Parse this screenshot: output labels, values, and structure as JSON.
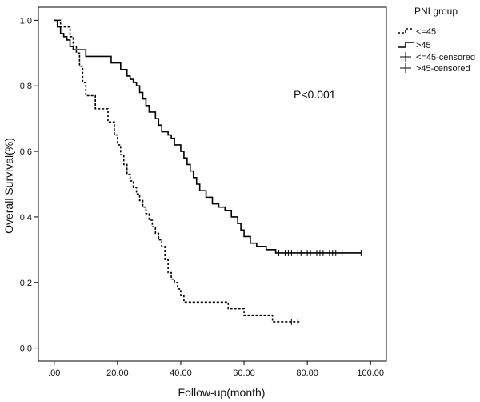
{
  "chart_data": {
    "type": "line",
    "title": "",
    "xlabel": "Follow-up(month)",
    "ylabel": "Overall Survival(%)",
    "xlim": [
      -5,
      105
    ],
    "ylim": [
      -0.04,
      1.04
    ],
    "x_ticks": [
      0,
      20,
      40,
      60,
      80,
      100
    ],
    "x_tick_labels": [
      ".00",
      "20.00",
      "40.00",
      "60.00",
      "80.00",
      "100.00"
    ],
    "y_ticks": [
      0,
      0.2,
      0.4,
      0.6,
      0.8,
      1.0
    ],
    "y_tick_labels": [
      "0.0",
      "0.2",
      "0.4",
      "0.6",
      "0.8",
      "1.0"
    ],
    "grid": false,
    "annotation": "P<0.001",
    "legend": {
      "title": "PNI group",
      "placement": "outside-right",
      "entries": [
        {
          "label": "<=45",
          "symbol": "dashed-step"
        },
        {
          "label": ">45",
          "symbol": "solid-step"
        },
        {
          "label": "<=45-censored",
          "symbol": "censor-mark"
        },
        {
          "label": ">45-censored",
          "symbol": "censor-mark"
        }
      ]
    },
    "series": [
      {
        "name": "<=45",
        "style": "dashed",
        "color": "#000000",
        "steps": [
          [
            0,
            1.0
          ],
          [
            2,
            0.98
          ],
          [
            5,
            0.95
          ],
          [
            6,
            0.92
          ],
          [
            7,
            0.9
          ],
          [
            8,
            0.86
          ],
          [
            9,
            0.81
          ],
          [
            10,
            0.77
          ],
          [
            13,
            0.73
          ],
          [
            17,
            0.69
          ],
          [
            19,
            0.65
          ],
          [
            20,
            0.62
          ],
          [
            21,
            0.59
          ],
          [
            22,
            0.56
          ],
          [
            23,
            0.53
          ],
          [
            24,
            0.51
          ],
          [
            25,
            0.49
          ],
          [
            26,
            0.47
          ],
          [
            27,
            0.45
          ],
          [
            28,
            0.43
          ],
          [
            29,
            0.41
          ],
          [
            30,
            0.39
          ],
          [
            31,
            0.37
          ],
          [
            32,
            0.35
          ],
          [
            33,
            0.33
          ],
          [
            34,
            0.31
          ],
          [
            35,
            0.27
          ],
          [
            36,
            0.23
          ],
          [
            37,
            0.21
          ],
          [
            38,
            0.2
          ],
          [
            39,
            0.18
          ],
          [
            40,
            0.16
          ],
          [
            41,
            0.14
          ],
          [
            55,
            0.12
          ],
          [
            60,
            0.1
          ],
          [
            69,
            0.08
          ]
        ],
        "end": 78,
        "censored": [
          [
            72,
            0.08
          ],
          [
            75,
            0.08
          ],
          [
            77,
            0.08
          ]
        ]
      },
      {
        "name": ">45",
        "style": "solid",
        "color": "#000000",
        "steps": [
          [
            0,
            1.0
          ],
          [
            1,
            0.98
          ],
          [
            2,
            0.96
          ],
          [
            3,
            0.95
          ],
          [
            4,
            0.94
          ],
          [
            5,
            0.92
          ],
          [
            6,
            0.91
          ],
          [
            10,
            0.89
          ],
          [
            18,
            0.87
          ],
          [
            21,
            0.85
          ],
          [
            23,
            0.83
          ],
          [
            24,
            0.82
          ],
          [
            25,
            0.81
          ],
          [
            26,
            0.8
          ],
          [
            27,
            0.78
          ],
          [
            28,
            0.76
          ],
          [
            29,
            0.74
          ],
          [
            30,
            0.72
          ],
          [
            32,
            0.7
          ],
          [
            33,
            0.68
          ],
          [
            34,
            0.66
          ],
          [
            36,
            0.65
          ],
          [
            37,
            0.64
          ],
          [
            38,
            0.62
          ],
          [
            40,
            0.6
          ],
          [
            41,
            0.58
          ],
          [
            42,
            0.56
          ],
          [
            43,
            0.54
          ],
          [
            44,
            0.52
          ],
          [
            45,
            0.5
          ],
          [
            46,
            0.48
          ],
          [
            48,
            0.46
          ],
          [
            50,
            0.44
          ],
          [
            52,
            0.43
          ],
          [
            54,
            0.42
          ],
          [
            56,
            0.4
          ],
          [
            58,
            0.38
          ],
          [
            59,
            0.36
          ],
          [
            60,
            0.34
          ],
          [
            62,
            0.32
          ],
          [
            64,
            0.31
          ],
          [
            67,
            0.3
          ],
          [
            70,
            0.29
          ]
        ],
        "end": 97,
        "censored": [
          [
            71,
            0.29
          ],
          [
            72,
            0.29
          ],
          [
            73,
            0.29
          ],
          [
            74,
            0.29
          ],
          [
            75,
            0.29
          ],
          [
            77,
            0.29
          ],
          [
            78,
            0.29
          ],
          [
            80,
            0.29
          ],
          [
            81,
            0.29
          ],
          [
            83,
            0.29
          ],
          [
            84,
            0.29
          ],
          [
            85,
            0.29
          ],
          [
            87,
            0.29
          ],
          [
            88,
            0.29
          ],
          [
            89,
            0.29
          ],
          [
            91,
            0.29
          ],
          [
            97,
            0.29
          ]
        ]
      }
    ]
  }
}
